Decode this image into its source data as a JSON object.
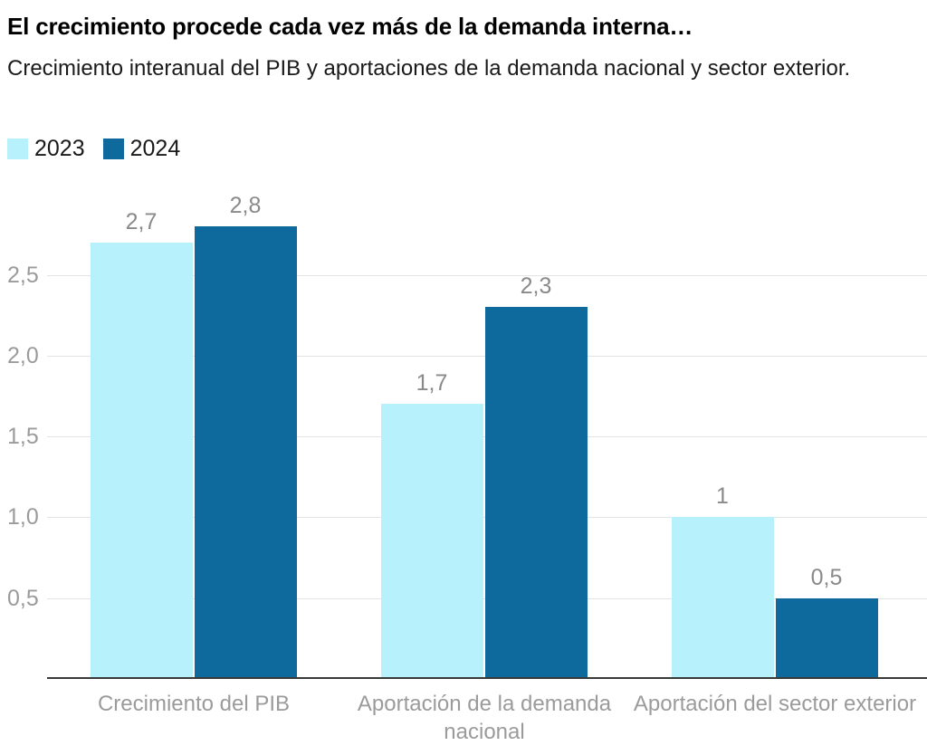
{
  "header": {
    "title": "El crecimiento procede cada vez más de la demanda interna…",
    "subtitle": "Crecimiento interanual del PIB y aportaciones de la demanda nacional y sector exterior."
  },
  "legend": {
    "items": [
      {
        "label": "2023",
        "color": "#b7f2fc"
      },
      {
        "label": "2024",
        "color": "#0e6a9c"
      }
    ]
  },
  "chart_data": {
    "type": "bar",
    "title": "El crecimiento procede cada vez más de la demanda interna…",
    "subtitle": "Crecimiento interanual del PIB y aportaciones de la demanda nacional y sector exterior.",
    "categories": [
      "Crecimiento del PIB",
      "Aportación de la demanda nacional",
      "Aportación del sector exterior"
    ],
    "series": [
      {
        "name": "2023",
        "color": "#b7f2fc",
        "values": [
          2.7,
          1.7,
          1.0
        ],
        "value_labels": [
          "2,7",
          "1,7",
          "1"
        ]
      },
      {
        "name": "2024",
        "color": "#0e6a9c",
        "values": [
          2.8,
          2.3,
          0.5
        ],
        "value_labels": [
          "2,8",
          "2,3",
          "0,5"
        ]
      }
    ],
    "y_ticks": [
      {
        "value": 0.5,
        "label": "0,5"
      },
      {
        "value": 1.0,
        "label": "1,0"
      },
      {
        "value": 1.5,
        "label": "1,5"
      },
      {
        "value": 2.0,
        "label": "2,0"
      },
      {
        "value": 2.5,
        "label": "2,5"
      }
    ],
    "ylim": [
      0,
      3.0
    ],
    "grid": true,
    "decimal_separator": ",",
    "legend_position": "top-left",
    "xlabel": "",
    "ylabel": "",
    "colors": {
      "grid_line": "#e4e4e4",
      "axis_line": "#3a3a3a",
      "tick_label": "#9b9b9b",
      "value_label": "#8a8a8a",
      "category_label": "#9b9b9b",
      "background": "#ffffff"
    }
  }
}
